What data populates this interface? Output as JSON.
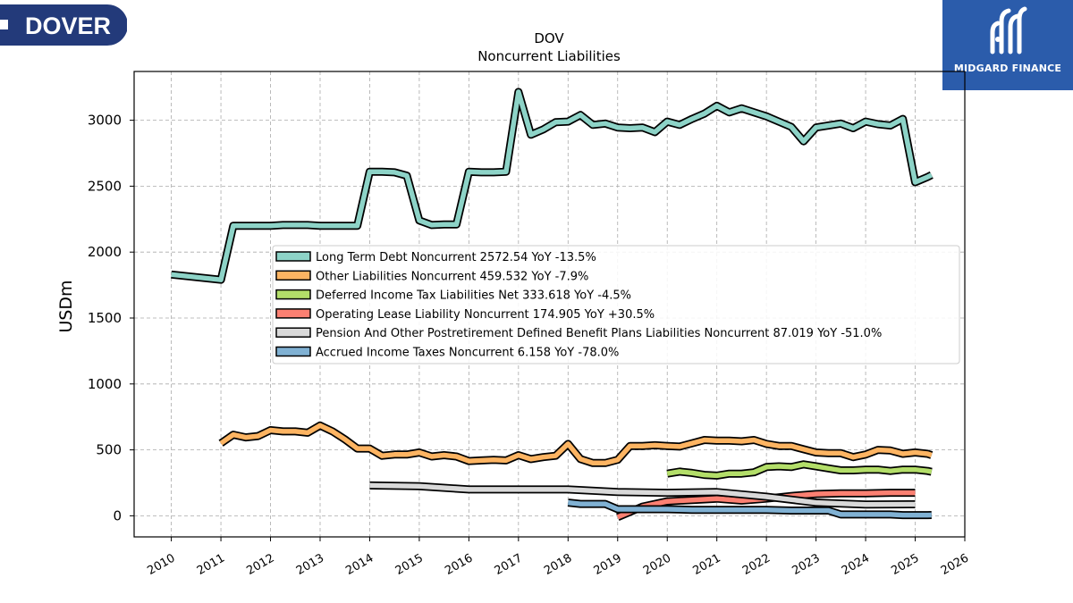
{
  "branding": {
    "left_logo_text": "DOVER",
    "right_logo_text": "MIDGARD FINANCE",
    "right_logo_bg": "#2b5cab",
    "left_logo_bg": "#233a7a"
  },
  "chart_data": {
    "type": "line",
    "title": "DOV",
    "subtitle": "Noncurrent  Liabilities",
    "xlabel": "",
    "ylabel": "USDm",
    "xlim": [
      2009.25,
      2026.0
    ],
    "ylim": [
      -160,
      3370
    ],
    "x_ticks": [
      "2010",
      "2011",
      "2012",
      "2013",
      "2014",
      "2015",
      "2016",
      "2017",
      "2018",
      "2019",
      "2020",
      "2021",
      "2022",
      "2023",
      "2024",
      "2025",
      "2026"
    ],
    "y_ticks": [
      "0",
      "500",
      "1000",
      "1500",
      "2000",
      "2500",
      "3000"
    ],
    "grid": true,
    "legend_position": "center-right",
    "series": [
      {
        "name": "Long Term Debt Noncurrent  2572.54 YoY -13.5%",
        "color": "#8dd3c7",
        "points": [
          [
            2010.0,
            1830
          ],
          [
            2011.0,
            1790
          ],
          [
            2011.25,
            2200
          ],
          [
            2011.5,
            2200
          ],
          [
            2011.75,
            2200
          ],
          [
            2012.0,
            2200
          ],
          [
            2012.25,
            2205
          ],
          [
            2012.5,
            2205
          ],
          [
            2012.75,
            2205
          ],
          [
            2013.0,
            2200
          ],
          [
            2013.25,
            2200
          ],
          [
            2013.5,
            2200
          ],
          [
            2013.75,
            2200
          ],
          [
            2014.0,
            2610
          ],
          [
            2014.25,
            2610
          ],
          [
            2014.5,
            2605
          ],
          [
            2014.75,
            2580
          ],
          [
            2015.0,
            2240
          ],
          [
            2015.25,
            2205
          ],
          [
            2015.5,
            2210
          ],
          [
            2015.75,
            2210
          ],
          [
            2016.0,
            2610
          ],
          [
            2016.25,
            2605
          ],
          [
            2016.5,
            2605
          ],
          [
            2016.75,
            2610
          ],
          [
            2017.0,
            3215
          ],
          [
            2017.25,
            2890
          ],
          [
            2017.5,
            2930
          ],
          [
            2017.75,
            2985
          ],
          [
            2018.0,
            2990
          ],
          [
            2018.25,
            3040
          ],
          [
            2018.5,
            2965
          ],
          [
            2018.75,
            2975
          ],
          [
            2019.0,
            2945
          ],
          [
            2019.25,
            2940
          ],
          [
            2019.5,
            2945
          ],
          [
            2019.75,
            2910
          ],
          [
            2020.0,
            2990
          ],
          [
            2020.25,
            2965
          ],
          [
            2020.5,
            3010
          ],
          [
            2020.75,
            3050
          ],
          [
            2021.0,
            3110
          ],
          [
            2021.25,
            3060
          ],
          [
            2021.5,
            3090
          ],
          [
            2021.75,
            3060
          ],
          [
            2022.0,
            3030
          ],
          [
            2022.25,
            2990
          ],
          [
            2022.5,
            2950
          ],
          [
            2022.75,
            2840
          ],
          [
            2023.0,
            2945
          ],
          [
            2023.25,
            2960
          ],
          [
            2023.5,
            2975
          ],
          [
            2023.75,
            2940
          ],
          [
            2024.0,
            2990
          ],
          [
            2024.25,
            2970
          ],
          [
            2024.5,
            2960
          ],
          [
            2024.75,
            3010
          ],
          [
            2025.0,
            2530
          ],
          [
            2025.25,
            2570
          ],
          [
            2025.33,
            2585
          ]
        ]
      },
      {
        "name": "Other Liabilities Noncurrent  459.532 YoY -7.9%",
        "color": "#fdb462",
        "points": [
          [
            2011.0,
            550
          ],
          [
            2011.25,
            615
          ],
          [
            2011.5,
            595
          ],
          [
            2011.75,
            605
          ],
          [
            2012.0,
            650
          ],
          [
            2012.25,
            640
          ],
          [
            2012.5,
            640
          ],
          [
            2012.75,
            630
          ],
          [
            2013.0,
            685
          ],
          [
            2013.25,
            640
          ],
          [
            2013.5,
            580
          ],
          [
            2013.75,
            510
          ],
          [
            2014.0,
            510
          ],
          [
            2014.25,
            455
          ],
          [
            2014.5,
            465
          ],
          [
            2014.75,
            465
          ],
          [
            2015.0,
            480
          ],
          [
            2015.25,
            450
          ],
          [
            2015.5,
            460
          ],
          [
            2015.75,
            450
          ],
          [
            2016.0,
            415
          ],
          [
            2016.25,
            420
          ],
          [
            2016.5,
            425
          ],
          [
            2016.75,
            420
          ],
          [
            2017.0,
            460
          ],
          [
            2017.25,
            430
          ],
          [
            2017.5,
            445
          ],
          [
            2017.75,
            455
          ],
          [
            2018.0,
            545
          ],
          [
            2018.25,
            430
          ],
          [
            2018.5,
            400
          ],
          [
            2018.75,
            400
          ],
          [
            2019.0,
            425
          ],
          [
            2019.25,
            530
          ],
          [
            2019.5,
            530
          ],
          [
            2019.75,
            535
          ],
          [
            2020.0,
            530
          ],
          [
            2020.25,
            525
          ],
          [
            2020.5,
            550
          ],
          [
            2020.75,
            575
          ],
          [
            2021.0,
            570
          ],
          [
            2021.25,
            570
          ],
          [
            2021.5,
            565
          ],
          [
            2021.75,
            575
          ],
          [
            2022.0,
            545
          ],
          [
            2022.25,
            530
          ],
          [
            2022.5,
            530
          ],
          [
            2022.75,
            505
          ],
          [
            2023.0,
            480
          ],
          [
            2023.25,
            475
          ],
          [
            2023.5,
            475
          ],
          [
            2023.75,
            445
          ],
          [
            2024.0,
            465
          ],
          [
            2024.25,
            500
          ],
          [
            2024.5,
            495
          ],
          [
            2024.75,
            470
          ],
          [
            2025.0,
            480
          ],
          [
            2025.25,
            470
          ],
          [
            2025.33,
            460
          ]
        ]
      },
      {
        "name": "Deferred Income Tax Liabilities Net  333.618 YoY -4.5%",
        "color": "#b3de69",
        "points": [
          [
            2020.0,
            320
          ],
          [
            2020.25,
            335
          ],
          [
            2020.5,
            325
          ],
          [
            2020.75,
            310
          ],
          [
            2021.0,
            305
          ],
          [
            2021.25,
            320
          ],
          [
            2021.5,
            320
          ],
          [
            2021.75,
            330
          ],
          [
            2022.0,
            370
          ],
          [
            2022.25,
            375
          ],
          [
            2022.5,
            370
          ],
          [
            2022.75,
            390
          ],
          [
            2023.0,
            375
          ],
          [
            2023.25,
            360
          ],
          [
            2023.5,
            345
          ],
          [
            2023.75,
            345
          ],
          [
            2024.0,
            350
          ],
          [
            2024.25,
            350
          ],
          [
            2024.5,
            340
          ],
          [
            2024.75,
            350
          ],
          [
            2025.0,
            350
          ],
          [
            2025.25,
            340
          ],
          [
            2025.33,
            334
          ]
        ]
      },
      {
        "name": "Operating Lease Liability Noncurrent  174.905 YoY +30.5%",
        "color": "#fb8072",
        "points": [
          [
            2019.0,
            -10
          ],
          [
            2019.5,
            70
          ],
          [
            2020.0,
            110
          ],
          [
            2020.5,
            120
          ],
          [
            2021.0,
            130
          ],
          [
            2021.5,
            115
          ],
          [
            2022.0,
            130
          ],
          [
            2022.5,
            150
          ],
          [
            2023.0,
            165
          ],
          [
            2023.5,
            170
          ],
          [
            2024.0,
            170
          ],
          [
            2024.5,
            175
          ],
          [
            2025.0,
            175
          ]
        ]
      },
      {
        "name": "Pension And Other Postretirement Defined Benefit Plans Liabilities Noncurrent  87.019 YoY -51.0%",
        "color": "#d9d9d9",
        "points": [
          [
            2014.0,
            230
          ],
          [
            2015.0,
            225
          ],
          [
            2016.0,
            200
          ],
          [
            2017.0,
            200
          ],
          [
            2018.0,
            200
          ],
          [
            2019.0,
            180
          ],
          [
            2020.0,
            175
          ],
          [
            2021.0,
            180
          ],
          [
            2022.0,
            145
          ],
          [
            2023.0,
            100
          ],
          [
            2024.0,
            85
          ],
          [
            2025.0,
            87
          ]
        ]
      },
      {
        "name": "Accrued Income Taxes Noncurrent  6.158 YoY -78.0%",
        "color": "#80b1d3",
        "points": [
          [
            2018.0,
            100
          ],
          [
            2018.25,
            90
          ],
          [
            2018.5,
            90
          ],
          [
            2018.75,
            90
          ],
          [
            2019.0,
            50
          ],
          [
            2019.5,
            50
          ],
          [
            2020.0,
            50
          ],
          [
            2020.5,
            45
          ],
          [
            2021.0,
            45
          ],
          [
            2021.5,
            45
          ],
          [
            2022.0,
            45
          ],
          [
            2022.5,
            40
          ],
          [
            2023.0,
            40
          ],
          [
            2023.25,
            40
          ],
          [
            2023.5,
            10
          ],
          [
            2023.75,
            10
          ],
          [
            2024.0,
            10
          ],
          [
            2024.25,
            10
          ],
          [
            2024.5,
            10
          ],
          [
            2024.75,
            5
          ],
          [
            2025.0,
            5
          ],
          [
            2025.25,
            5
          ],
          [
            2025.33,
            6
          ]
        ]
      }
    ]
  }
}
